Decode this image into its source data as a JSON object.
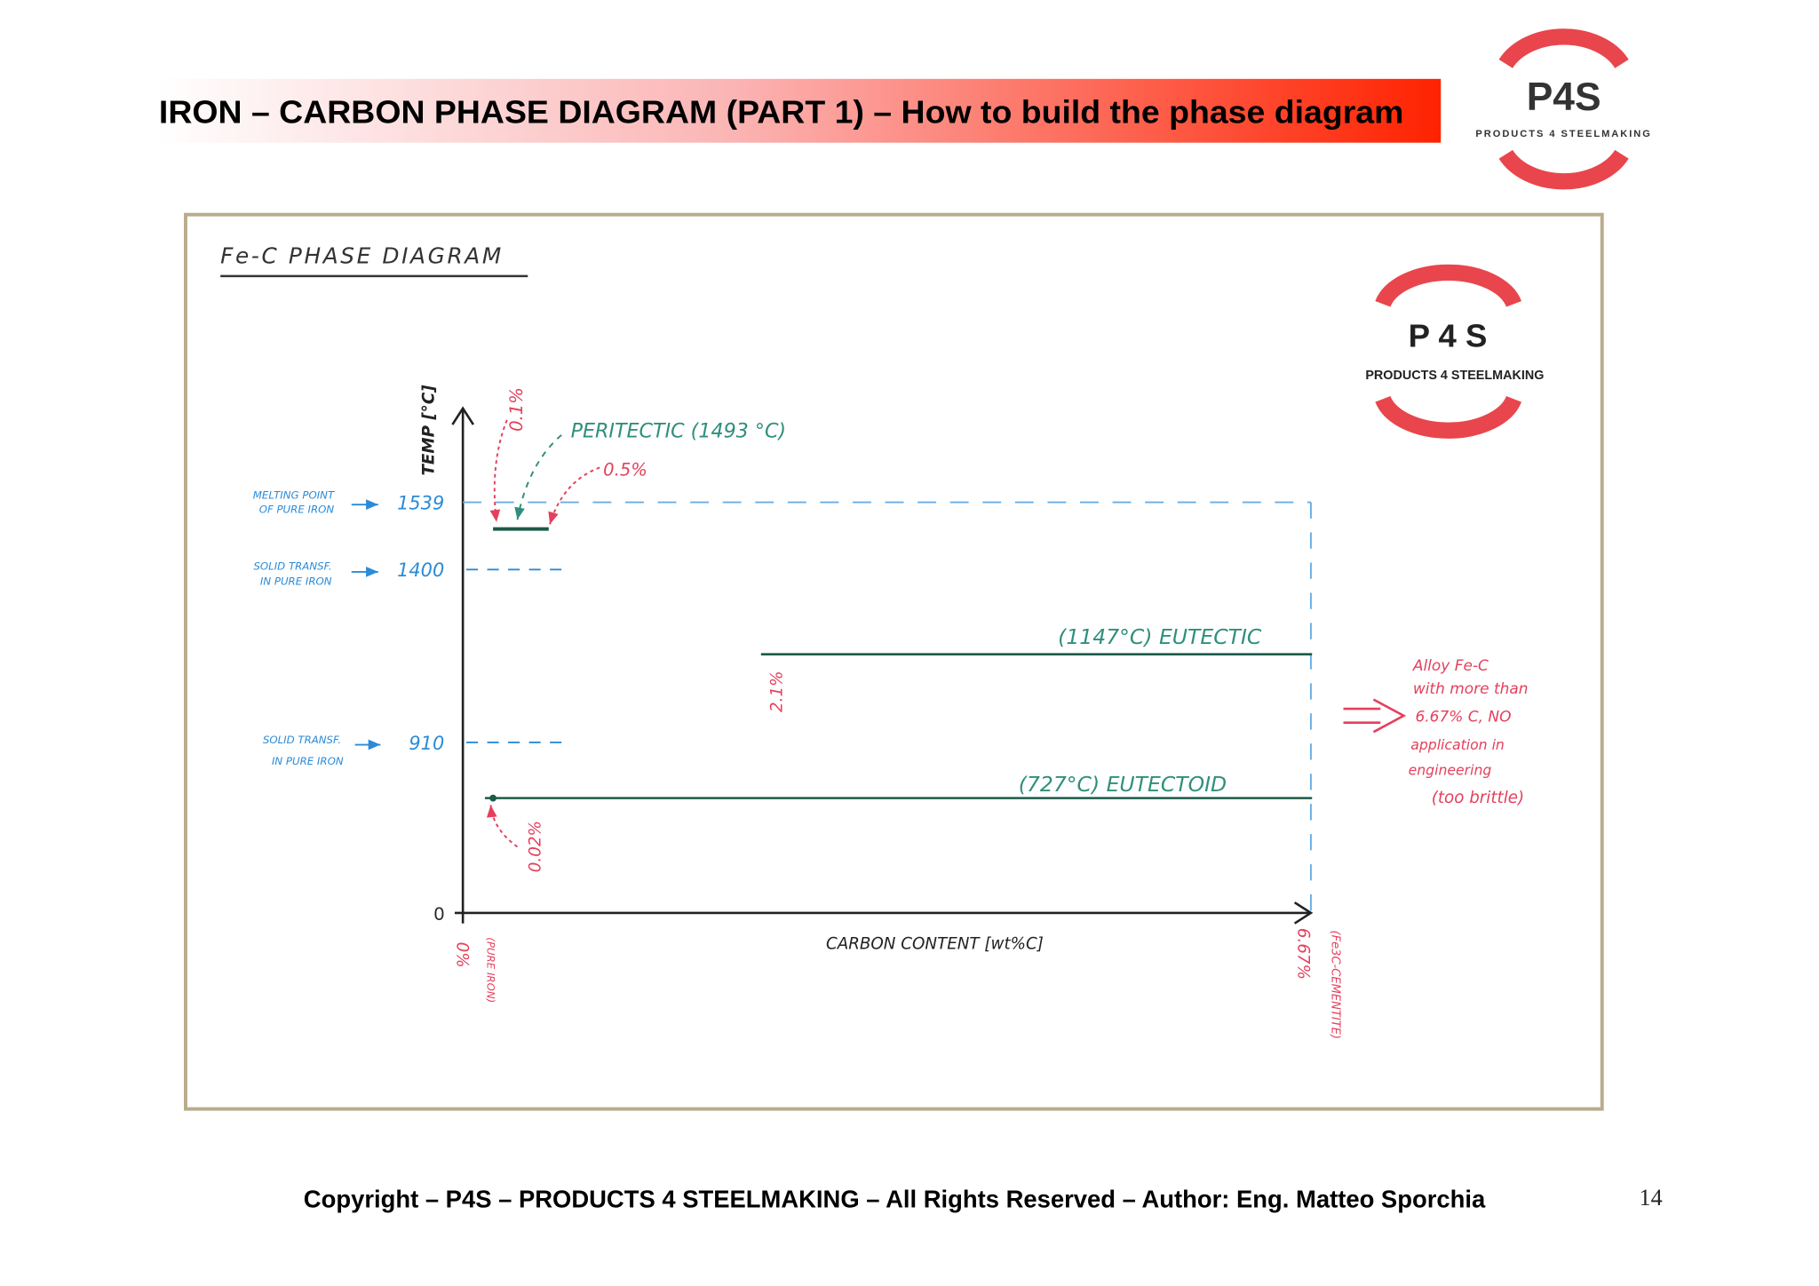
{
  "header": {
    "title": "IRON – CARBON PHASE DIAGRAM (PART 1) – How to build the phase diagram",
    "logo": {
      "name": "P4S",
      "tagline": "PRODUCTS 4 STEELMAKING"
    }
  },
  "diagram": {
    "title": "Fe-C PHASE DIAGRAM",
    "logo": {
      "name": "P 4 S",
      "tagline": "PRODUCTS 4 STEELMAKING"
    },
    "y_axis": {
      "label": "TEMP [°C]",
      "ticks": [
        {
          "label": "1539",
          "note": [
            "MELTING POINT",
            "OF PURE IRON"
          ]
        },
        {
          "label": "1400",
          "note": [
            "SOLID TRANSF.",
            "IN PURE IRON"
          ]
        },
        {
          "label": "910",
          "note": [
            "SOLID TRANSF.",
            "IN PURE IRON"
          ]
        },
        {
          "label": "0"
        }
      ]
    },
    "x_axis": {
      "label": "CARBON CONTENT [wt%C]",
      "start": {
        "label": "0%",
        "note": "(PURE IRON)"
      },
      "end": {
        "label": "6.67%",
        "note": "(Fe3C-CEMENTITE)"
      }
    },
    "peritectic": {
      "label": "PERITECTIC (1493 °C)",
      "compositions": [
        "0.1%",
        "0.5%"
      ]
    },
    "eutectic": {
      "label": "(1147°C) EUTECTIC",
      "composition": "2.1%"
    },
    "eutectoid": {
      "label": "(727°C) EUTECTOID",
      "composition": "0.02%"
    },
    "note": [
      "Alloy Fe-C",
      "with more than",
      "6.67% C, NO",
      "application in",
      "engineering",
      "(too brittle)"
    ]
  },
  "footer": {
    "copyright": "Copyright – P4S – PRODUCTS 4 STEELMAKING – All Rights Reserved – Author: Eng. Matteo Sporchia",
    "page": "14"
  }
}
